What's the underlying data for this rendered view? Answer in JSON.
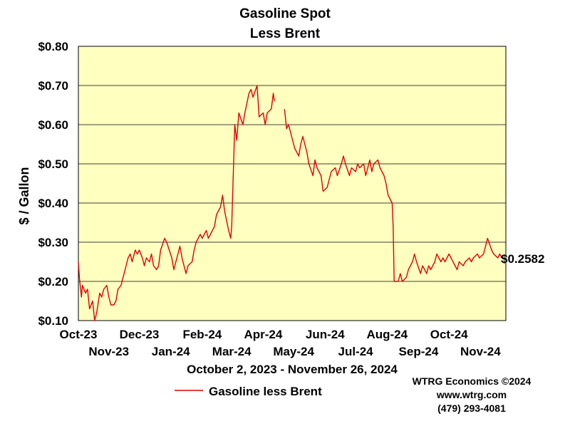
{
  "colors": {
    "plot_bg": "#ffffc0",
    "line": "#e00000",
    "grid": "#000000",
    "text": "#000000"
  },
  "chart_data": {
    "type": "line",
    "title": [
      "Gasoline Spot",
      "Less Brent"
    ],
    "ylabel": "$ / Gallon",
    "date_range": "October 2, 2023 - November 26, 2024",
    "ylim": [
      0.1,
      0.8
    ],
    "yticks": [
      "$0.10",
      "$0.20",
      "$0.30",
      "$0.40",
      "$0.50",
      "$0.60",
      "$0.70",
      "$0.80"
    ],
    "xlim": [
      "2023-10-02",
      "2024-11-26"
    ],
    "xticks_upper": [
      {
        "label": "Oct-23",
        "date": "2023-10-01"
      },
      {
        "label": "Dec-23",
        "date": "2023-12-01"
      },
      {
        "label": "Feb-24",
        "date": "2024-02-01"
      },
      {
        "label": "Apr-24",
        "date": "2024-04-01"
      },
      {
        "label": "Jun-24",
        "date": "2024-06-01"
      },
      {
        "label": "Aug-24",
        "date": "2024-08-01"
      },
      {
        "label": "Oct-24",
        "date": "2024-10-01"
      }
    ],
    "xticks_lower": [
      {
        "label": "Nov-23",
        "date": "2023-11-01"
      },
      {
        "label": "Jan-24",
        "date": "2024-01-01"
      },
      {
        "label": "Mar-24",
        "date": "2024-03-01"
      },
      {
        "label": "May-24",
        "date": "2024-05-01"
      },
      {
        "label": "Jul-24",
        "date": "2024-07-01"
      },
      {
        "label": "Sep-24",
        "date": "2024-09-01"
      },
      {
        "label": "Nov-24",
        "date": "2024-11-01"
      }
    ],
    "last_value_label": "$0.2582",
    "grid": true,
    "legend_position": "bottom-left",
    "series": [
      {
        "name": "Gasoline less Brent",
        "color": "#e00000",
        "segments": [
          [
            [
              "2023-10-02",
              0.25
            ],
            [
              "2023-10-03",
              0.21
            ],
            [
              "2023-10-05",
              0.16
            ],
            [
              "2023-10-06",
              0.19
            ],
            [
              "2023-10-09",
              0.17
            ],
            [
              "2023-10-11",
              0.18
            ],
            [
              "2023-10-13",
              0.13
            ],
            [
              "2023-10-16",
              0.15
            ],
            [
              "2023-10-18",
              0.1
            ],
            [
              "2023-10-20",
              0.12
            ],
            [
              "2023-10-23",
              0.17
            ],
            [
              "2023-10-25",
              0.16
            ],
            [
              "2023-10-27",
              0.18
            ],
            [
              "2023-10-30",
              0.19
            ],
            [
              "2023-11-01",
              0.16
            ],
            [
              "2023-11-03",
              0.14
            ],
            [
              "2023-11-06",
              0.14
            ],
            [
              "2023-11-08",
              0.15
            ],
            [
              "2023-11-10",
              0.18
            ],
            [
              "2023-11-13",
              0.19
            ],
            [
              "2023-11-15",
              0.21
            ],
            [
              "2023-11-17",
              0.23
            ],
            [
              "2023-11-20",
              0.26
            ],
            [
              "2023-11-22",
              0.27
            ],
            [
              "2023-11-24",
              0.25
            ],
            [
              "2023-11-27",
              0.28
            ],
            [
              "2023-11-29",
              0.27
            ],
            [
              "2023-12-01",
              0.28
            ],
            [
              "2023-12-04",
              0.26
            ],
            [
              "2023-12-06",
              0.24
            ],
            [
              "2023-12-08",
              0.26
            ],
            [
              "2023-12-11",
              0.25
            ],
            [
              "2023-12-13",
              0.27
            ],
            [
              "2023-12-15",
              0.24
            ],
            [
              "2023-12-18",
              0.23
            ],
            [
              "2023-12-20",
              0.24
            ],
            [
              "2023-12-22",
              0.28
            ],
            [
              "2023-12-26",
              0.31
            ],
            [
              "2023-12-28",
              0.3
            ],
            [
              "2024-01-02",
              0.26
            ],
            [
              "2024-01-04",
              0.23
            ],
            [
              "2024-01-08",
              0.27
            ],
            [
              "2024-01-10",
              0.29
            ],
            [
              "2024-01-12",
              0.26
            ],
            [
              "2024-01-16",
              0.22
            ],
            [
              "2024-01-18",
              0.24
            ],
            [
              "2024-01-22",
              0.25
            ],
            [
              "2024-01-24",
              0.28
            ],
            [
              "2024-01-26",
              0.3
            ],
            [
              "2024-01-30",
              0.32
            ],
            [
              "2024-02-01",
              0.31
            ],
            [
              "2024-02-05",
              0.33
            ],
            [
              "2024-02-07",
              0.31
            ],
            [
              "2024-02-09",
              0.32
            ],
            [
              "2024-02-13",
              0.34
            ],
            [
              "2024-02-15",
              0.37
            ],
            [
              "2024-02-19",
              0.39
            ],
            [
              "2024-02-21",
              0.42
            ],
            [
              "2024-02-23",
              0.38
            ],
            [
              "2024-02-27",
              0.33
            ],
            [
              "2024-02-29",
              0.31
            ],
            [
              "2024-03-01",
              0.34
            ],
            [
              "2024-03-04",
              0.6
            ],
            [
              "2024-03-06",
              0.56
            ],
            [
              "2024-03-08",
              0.63
            ],
            [
              "2024-03-12",
              0.6
            ],
            [
              "2024-03-14",
              0.63
            ],
            [
              "2024-03-18",
              0.68
            ],
            [
              "2024-03-20",
              0.69
            ],
            [
              "2024-03-22",
              0.67
            ],
            [
              "2024-03-26",
              0.7
            ],
            [
              "2024-03-28",
              0.62
            ],
            [
              "2024-04-01",
              0.63
            ],
            [
              "2024-04-03",
              0.6
            ],
            [
              "2024-04-05",
              0.63
            ],
            [
              "2024-04-09",
              0.64
            ],
            [
              "2024-04-11",
              0.68
            ],
            [
              "2024-04-12",
              0.66
            ]
          ],
          [
            [
              "2024-04-22",
              0.64
            ],
            [
              "2024-04-24",
              0.59
            ],
            [
              "2024-04-26",
              0.6
            ],
            [
              "2024-04-30",
              0.56
            ],
            [
              "2024-05-02",
              0.54
            ],
            [
              "2024-05-06",
              0.52
            ],
            [
              "2024-05-08",
              0.55
            ],
            [
              "2024-05-10",
              0.57
            ],
            [
              "2024-05-14",
              0.53
            ],
            [
              "2024-05-16",
              0.5
            ],
            [
              "2024-05-20",
              0.47
            ],
            [
              "2024-05-22",
              0.51
            ],
            [
              "2024-05-24",
              0.49
            ],
            [
              "2024-05-28",
              0.47
            ],
            [
              "2024-05-30",
              0.43
            ],
            [
              "2024-06-03",
              0.44
            ],
            [
              "2024-06-05",
              0.46
            ],
            [
              "2024-06-07",
              0.48
            ],
            [
              "2024-06-11",
              0.49
            ],
            [
              "2024-06-13",
              0.47
            ],
            [
              "2024-06-17",
              0.5
            ],
            [
              "2024-06-19",
              0.52
            ],
            [
              "2024-06-21",
              0.5
            ],
            [
              "2024-06-25",
              0.47
            ],
            [
              "2024-06-27",
              0.49
            ],
            [
              "2024-07-01",
              0.48
            ],
            [
              "2024-07-03",
              0.5
            ],
            [
              "2024-07-05",
              0.49
            ],
            [
              "2024-07-09",
              0.5
            ],
            [
              "2024-07-11",
              0.47
            ],
            [
              "2024-07-15",
              0.51
            ],
            [
              "2024-07-17",
              0.48
            ],
            [
              "2024-07-19",
              0.5
            ],
            [
              "2024-07-23",
              0.51
            ],
            [
              "2024-07-25",
              0.49
            ],
            [
              "2024-07-29",
              0.47
            ],
            [
              "2024-07-31",
              0.45
            ],
            [
              "2024-08-02",
              0.42
            ],
            [
              "2024-08-06",
              0.4
            ],
            [
              "2024-08-07",
              0.34
            ],
            [
              "2024-08-08",
              0.2
            ],
            [
              "2024-08-12",
              0.2
            ],
            [
              "2024-08-14",
              0.22
            ],
            [
              "2024-08-16",
              0.2
            ],
            [
              "2024-08-20",
              0.21
            ],
            [
              "2024-08-22",
              0.23
            ],
            [
              "2024-08-26",
              0.25
            ],
            [
              "2024-08-28",
              0.27
            ],
            [
              "2024-08-30",
              0.25
            ],
            [
              "2024-09-03",
              0.22
            ],
            [
              "2024-09-05",
              0.24
            ],
            [
              "2024-09-09",
              0.22
            ],
            [
              "2024-09-11",
              0.24
            ],
            [
              "2024-09-13",
              0.23
            ],
            [
              "2024-09-17",
              0.25
            ],
            [
              "2024-09-19",
              0.27
            ],
            [
              "2024-09-23",
              0.25
            ],
            [
              "2024-09-25",
              0.26
            ],
            [
              "2024-09-27",
              0.25
            ],
            [
              "2024-10-01",
              0.27
            ],
            [
              "2024-10-03",
              0.26
            ],
            [
              "2024-10-07",
              0.24
            ],
            [
              "2024-10-09",
              0.23
            ],
            [
              "2024-10-11",
              0.25
            ],
            [
              "2024-10-15",
              0.24
            ],
            [
              "2024-10-17",
              0.25
            ],
            [
              "2024-10-21",
              0.26
            ],
            [
              "2024-10-23",
              0.25
            ],
            [
              "2024-10-25",
              0.26
            ],
            [
              "2024-10-29",
              0.27
            ],
            [
              "2024-10-31",
              0.26
            ],
            [
              "2024-11-04",
              0.27
            ],
            [
              "2024-11-06",
              0.29
            ],
            [
              "2024-11-08",
              0.31
            ],
            [
              "2024-11-12",
              0.28
            ],
            [
              "2024-11-14",
              0.27
            ],
            [
              "2024-11-18",
              0.26
            ],
            [
              "2024-11-20",
              0.27
            ],
            [
              "2024-11-22",
              0.26
            ],
            [
              "2024-11-26",
              0.2582
            ]
          ]
        ]
      }
    ]
  },
  "footer": {
    "legend_label": "Gasoline less Brent",
    "copyright": "WTRG Economics ©2024",
    "website": "www.wtrg.com",
    "phone": "(479) 293-4081"
  }
}
